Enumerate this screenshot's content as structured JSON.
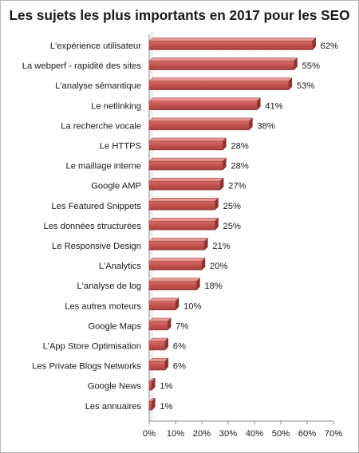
{
  "chart_data": {
    "type": "bar",
    "orientation": "horizontal",
    "title": "Les sujets les plus importants en 2017 pour les SEO",
    "categories": [
      "L'expérience utilisateur",
      "La webperf - rapidité des sites",
      "L'analyse sémantique",
      "Le netlinking",
      "La recherche vocale",
      "Le HTTPS",
      "Le maillage interne",
      "Google AMP",
      "Les Featured Snippets",
      "Les données structurées",
      "Le Responsive Design",
      "L'Analytics",
      "L'analyse de log",
      "Les autres moteurs",
      "Google Maps",
      "L'App Store Optimisation",
      "Les Private Blogs Networks",
      "Google News",
      "Les annuaires"
    ],
    "values": [
      62,
      55,
      53,
      41,
      38,
      28,
      28,
      27,
      25,
      25,
      21,
      20,
      18,
      10,
      7,
      6,
      6,
      1,
      1
    ],
    "value_labels": [
      "62%",
      "55%",
      "53%",
      "41%",
      "38%",
      "28%",
      "28%",
      "27%",
      "25%",
      "25%",
      "21%",
      "20%",
      "18%",
      "10%",
      "7%",
      "6%",
      "6%",
      "1%",
      "1%"
    ],
    "xlim": [
      0,
      70
    ],
    "x_ticks": [
      0,
      10,
      20,
      30,
      40,
      50,
      60,
      70
    ],
    "x_tick_labels": [
      "0%",
      "10%",
      "20%",
      "30%",
      "40%",
      "50%",
      "60%",
      "70%"
    ],
    "grid": false,
    "legend": "none",
    "bar_color": "#c0504d"
  }
}
